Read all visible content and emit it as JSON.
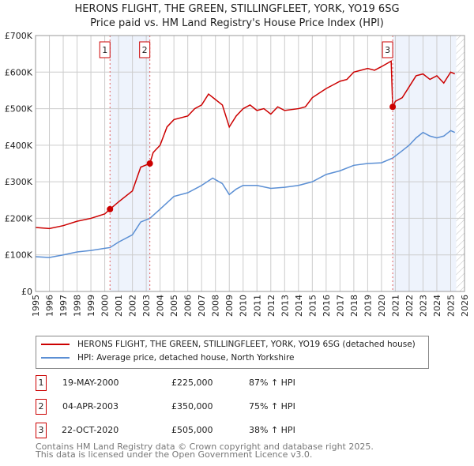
{
  "chart_data": {
    "type": "line",
    "title": "HERONS FLIGHT, THE GREEN, STILLINGFLEET, YORK, YO19 6SG",
    "subtitle": "Price paid vs. HM Land Registry's House Price Index (HPI)",
    "xlim": [
      1995,
      2026
    ],
    "ylim": [
      0,
      700000
    ],
    "yticks": [
      0,
      100000,
      200000,
      300000,
      400000,
      500000,
      600000,
      700000
    ],
    "ytick_labels": [
      "£0",
      "£100K",
      "£200K",
      "£300K",
      "£400K",
      "£500K",
      "£600K",
      "£700K"
    ],
    "xticks": [
      1995,
      1996,
      1997,
      1998,
      1999,
      2000,
      2001,
      2002,
      2003,
      2004,
      2005,
      2006,
      2007,
      2008,
      2009,
      2010,
      2011,
      2012,
      2013,
      2014,
      2015,
      2016,
      2017,
      2018,
      2019,
      2020,
      2021,
      2022,
      2023,
      2024,
      2025,
      2026
    ],
    "grid": true,
    "legend_position": "below",
    "shaded_periods": [
      [
        2000.38,
        2003.26
      ],
      [
        2020.81,
        2025.4
      ]
    ],
    "hatched_from": 2025.4,
    "series": [
      {
        "name": "HERONS FLIGHT, THE GREEN, STILLINGFLEET, YORK, YO19 6SG (detached house)",
        "color": "#cc0000",
        "x": [
          1995,
          1996,
          1997,
          1998,
          1999,
          2000,
          2000.38,
          2001,
          2002,
          2002.6,
          2003.26,
          2003.5,
          2004,
          2004.5,
          2005,
          2006,
          2006.5,
          2007,
          2007.5,
          2008,
          2008.5,
          2009,
          2009.5,
          2010,
          2010.5,
          2011,
          2011.5,
          2012,
          2012.5,
          2013,
          2014,
          2014.5,
          2015,
          2016,
          2016.5,
          2017,
          2017.5,
          2018,
          2018.5,
          2019,
          2019.5,
          2020,
          2020.7,
          2020.81,
          2021,
          2021.5,
          2022,
          2022.5,
          2023,
          2023.5,
          2024,
          2024.5,
          2025,
          2025.3
        ],
        "y": [
          175000,
          172000,
          180000,
          192000,
          200000,
          212000,
          225000,
          245000,
          275000,
          340000,
          350000,
          380000,
          400000,
          450000,
          470000,
          480000,
          500000,
          510000,
          540000,
          525000,
          510000,
          450000,
          480000,
          500000,
          510000,
          495000,
          500000,
          485000,
          505000,
          495000,
          500000,
          505000,
          530000,
          555000,
          565000,
          575000,
          580000,
          600000,
          605000,
          610000,
          605000,
          615000,
          630000,
          505000,
          520000,
          530000,
          560000,
          590000,
          595000,
          580000,
          590000,
          570000,
          600000,
          595000
        ]
      },
      {
        "name": "HPI: Average price, detached house, North Yorkshire",
        "color": "#5b8fd4",
        "x": [
          1995,
          1996,
          1997,
          1998,
          1999,
          2000,
          2000.38,
          2001,
          2002,
          2002.6,
          2003.26,
          2004,
          2005,
          2006,
          2007,
          2007.8,
          2008.5,
          2009,
          2009.5,
          2010,
          2011,
          2012,
          2013,
          2014,
          2015,
          2016,
          2017,
          2018,
          2019,
          2020,
          2020.81,
          2021.5,
          2022,
          2022.5,
          2023,
          2023.5,
          2024,
          2024.5,
          2025,
          2025.3
        ],
        "y": [
          95000,
          93000,
          100000,
          108000,
          112000,
          118000,
          120000,
          135000,
          155000,
          190000,
          200000,
          225000,
          260000,
          270000,
          290000,
          310000,
          295000,
          265000,
          280000,
          290000,
          290000,
          282000,
          285000,
          290000,
          300000,
          320000,
          330000,
          345000,
          350000,
          352000,
          365000,
          385000,
          400000,
          420000,
          435000,
          425000,
          420000,
          425000,
          440000,
          435000
        ]
      }
    ],
    "sales": [
      {
        "n": "1",
        "date": "19-MAY-2000",
        "x": 2000.38,
        "price": "£225,000",
        "value": 225000,
        "hpi": "87% ↑ HPI"
      },
      {
        "n": "2",
        "date": "04-APR-2003",
        "x": 2003.26,
        "price": "£350,000",
        "value": 350000,
        "hpi": "75% ↑ HPI"
      },
      {
        "n": "3",
        "date": "22-OCT-2020",
        "x": 2020.81,
        "price": "£505,000",
        "value": 505000,
        "hpi": "38% ↑ HPI"
      }
    ]
  },
  "footer": {
    "line1": "Contains HM Land Registry data © Crown copyright and database right 2025.",
    "line2": "This data is licensed under the Open Government Licence v3.0."
  }
}
